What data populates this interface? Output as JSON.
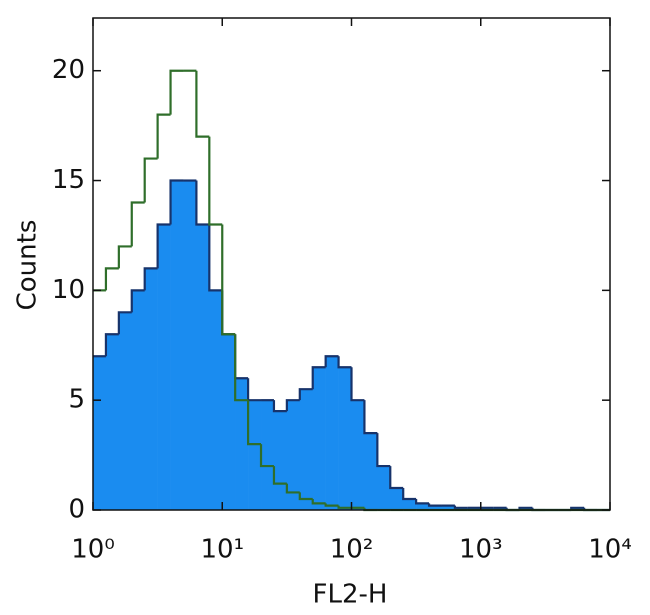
{
  "chart_data": {
    "type": "histogram",
    "xlabel": "FL2-H",
    "ylabel": "Counts",
    "xscale": "log",
    "xlim": [
      1,
      10000
    ],
    "ylim": [
      0,
      22.4
    ],
    "xticks": [
      {
        "value": 1,
        "label": "10⁰"
      },
      {
        "value": 10,
        "label": "10¹"
      },
      {
        "value": 100,
        "label": "10²"
      },
      {
        "value": 1000,
        "label": "10³"
      },
      {
        "value": 10000,
        "label": "10⁴"
      }
    ],
    "yticks": [
      0,
      5,
      10,
      15,
      20
    ],
    "bins": [
      1,
      1.259,
      1.585,
      1.995,
      2.512,
      3.162,
      3.981,
      5.012,
      6.31,
      7.943,
      10,
      12.59,
      15.85,
      19.95,
      25.12,
      31.62,
      39.81,
      50.12,
      63.1,
      79.43,
      100,
      125.9,
      158.5,
      199.5,
      251.2,
      316.2,
      398.1,
      501.2,
      631,
      794.3,
      1000,
      1259,
      1585,
      1995,
      2512,
      3162,
      3981,
      5012,
      6310,
      7943,
      10000
    ],
    "series": [
      {
        "color": "#1a8cf0",
        "edgecolor": "#17336b",
        "fill": true,
        "values": [
          7,
          8,
          9,
          10,
          11,
          13,
          15,
          15,
          13,
          10,
          8,
          6,
          5,
          5,
          4.5,
          5,
          5.5,
          6.5,
          7,
          6.5,
          5,
          3.5,
          2,
          1,
          0.5,
          0.3,
          0.2,
          0.2,
          0.1,
          0.1,
          0.1,
          0.1,
          0,
          0.1,
          0,
          0,
          0,
          0.1,
          0,
          0
        ]
      },
      {
        "color": "#2f6e2a",
        "fill": false,
        "values": [
          10,
          11,
          12,
          14,
          16,
          18,
          20,
          20,
          17,
          13,
          8,
          5,
          3,
          2,
          1.2,
          0.8,
          0.5,
          0.3,
          0.2,
          0.1,
          0.1,
          0,
          0,
          0,
          0,
          0,
          0,
          0,
          0,
          0,
          0,
          0,
          0,
          0,
          0,
          0,
          0,
          0,
          0,
          0
        ]
      }
    ]
  }
}
